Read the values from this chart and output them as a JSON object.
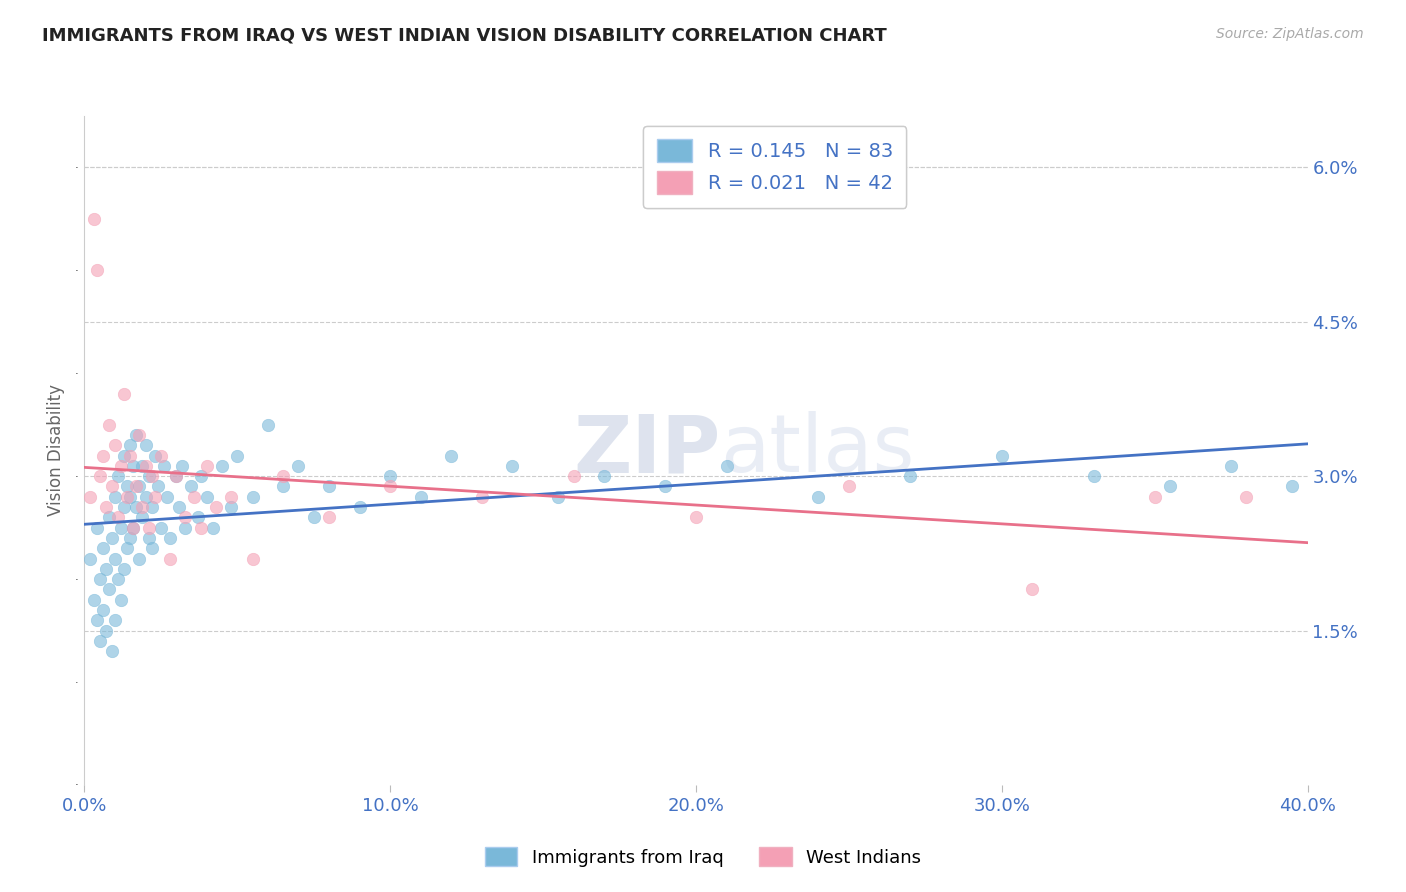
{
  "title": "IMMIGRANTS FROM IRAQ VS WEST INDIAN VISION DISABILITY CORRELATION CHART",
  "source_text": "Source: ZipAtlas.com",
  "ylabel": "Vision Disability",
  "xlim": [
    0.0,
    0.4
  ],
  "ylim": [
    0.0,
    0.065
  ],
  "yticks": [
    0.015,
    0.03,
    0.045,
    0.06
  ],
  "ytick_labels": [
    "1.5%",
    "3.0%",
    "4.5%",
    "6.0%"
  ],
  "xticks": [
    0.0,
    0.1,
    0.2,
    0.3,
    0.4
  ],
  "xtick_labels": [
    "0.0%",
    "10.0%",
    "20.0%",
    "30.0%",
    "40.0%"
  ],
  "iraq_color": "#7ab8d9",
  "westindian_color": "#f4a0b5",
  "iraq_line_color": "#4472c4",
  "westindian_line_color": "#e8708a",
  "iraq_R": 0.145,
  "iraq_N": 83,
  "westindian_R": 0.021,
  "westindian_N": 42,
  "legend_label_iraq": "Immigrants from Iraq",
  "legend_label_wi": "West Indians",
  "title_color": "#222222",
  "axis_label_color": "#4472c4",
  "legend_text_color": "#4472c4",
  "iraq_scatter_x": [
    0.002,
    0.003,
    0.004,
    0.004,
    0.005,
    0.005,
    0.006,
    0.006,
    0.007,
    0.007,
    0.008,
    0.008,
    0.009,
    0.009,
    0.01,
    0.01,
    0.01,
    0.011,
    0.011,
    0.012,
    0.012,
    0.013,
    0.013,
    0.013,
    0.014,
    0.014,
    0.015,
    0.015,
    0.015,
    0.016,
    0.016,
    0.017,
    0.017,
    0.018,
    0.018,
    0.019,
    0.019,
    0.02,
    0.02,
    0.021,
    0.021,
    0.022,
    0.022,
    0.023,
    0.024,
    0.025,
    0.026,
    0.027,
    0.028,
    0.03,
    0.031,
    0.032,
    0.033,
    0.035,
    0.037,
    0.038,
    0.04,
    0.042,
    0.045,
    0.048,
    0.05,
    0.055,
    0.06,
    0.065,
    0.07,
    0.075,
    0.08,
    0.09,
    0.1,
    0.11,
    0.12,
    0.14,
    0.155,
    0.17,
    0.19,
    0.21,
    0.24,
    0.27,
    0.3,
    0.33,
    0.355,
    0.375,
    0.395
  ],
  "iraq_scatter_y": [
    0.022,
    0.018,
    0.025,
    0.016,
    0.02,
    0.014,
    0.023,
    0.017,
    0.021,
    0.015,
    0.026,
    0.019,
    0.024,
    0.013,
    0.028,
    0.022,
    0.016,
    0.03,
    0.02,
    0.025,
    0.018,
    0.032,
    0.027,
    0.021,
    0.029,
    0.023,
    0.033,
    0.028,
    0.024,
    0.031,
    0.025,
    0.034,
    0.027,
    0.029,
    0.022,
    0.031,
    0.026,
    0.033,
    0.028,
    0.024,
    0.03,
    0.027,
    0.023,
    0.032,
    0.029,
    0.025,
    0.031,
    0.028,
    0.024,
    0.03,
    0.027,
    0.031,
    0.025,
    0.029,
    0.026,
    0.03,
    0.028,
    0.025,
    0.031,
    0.027,
    0.032,
    0.028,
    0.035,
    0.029,
    0.031,
    0.026,
    0.029,
    0.027,
    0.03,
    0.028,
    0.032,
    0.031,
    0.028,
    0.03,
    0.029,
    0.031,
    0.028,
    0.03,
    0.032,
    0.03,
    0.029,
    0.031,
    0.029
  ],
  "wi_scatter_x": [
    0.002,
    0.003,
    0.004,
    0.005,
    0.006,
    0.007,
    0.008,
    0.009,
    0.01,
    0.011,
    0.012,
    0.013,
    0.014,
    0.015,
    0.016,
    0.017,
    0.018,
    0.019,
    0.02,
    0.021,
    0.022,
    0.023,
    0.025,
    0.028,
    0.03,
    0.033,
    0.036,
    0.038,
    0.04,
    0.043,
    0.048,
    0.055,
    0.065,
    0.08,
    0.1,
    0.13,
    0.16,
    0.2,
    0.25,
    0.31,
    0.35,
    0.38
  ],
  "wi_scatter_y": [
    0.028,
    0.055,
    0.05,
    0.03,
    0.032,
    0.027,
    0.035,
    0.029,
    0.033,
    0.026,
    0.031,
    0.038,
    0.028,
    0.032,
    0.025,
    0.029,
    0.034,
    0.027,
    0.031,
    0.025,
    0.03,
    0.028,
    0.032,
    0.022,
    0.03,
    0.026,
    0.028,
    0.025,
    0.031,
    0.027,
    0.028,
    0.022,
    0.03,
    0.026,
    0.029,
    0.028,
    0.03,
    0.026,
    0.029,
    0.019,
    0.028,
    0.028
  ]
}
